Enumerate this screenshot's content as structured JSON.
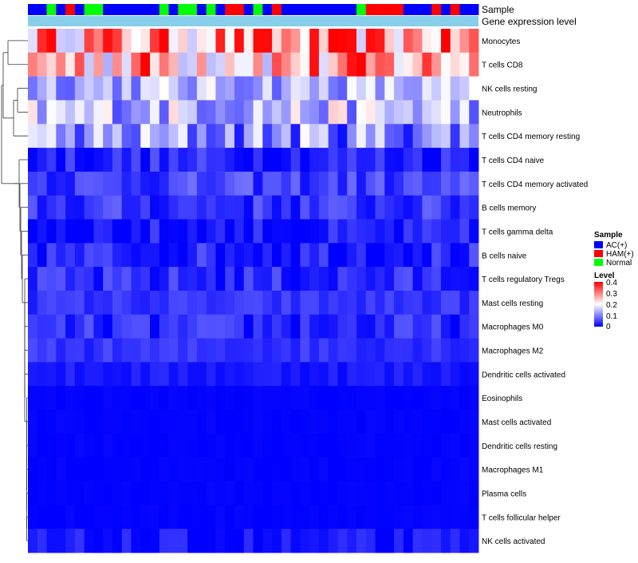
{
  "chart_data": {
    "type": "heatmap",
    "title": "",
    "annotation_tracks": [
      "Sample",
      "Gene expression level"
    ],
    "sample_groups": [
      "A",
      "A",
      "N",
      "A",
      "H",
      "A",
      "N",
      "N",
      "A",
      "A",
      "A",
      "A",
      "A",
      "A",
      "N",
      "A",
      "N",
      "N",
      "A",
      "N",
      "A",
      "H",
      "H",
      "A",
      "N",
      "A",
      "H",
      "A",
      "A",
      "A",
      "A",
      "A",
      "A",
      "A",
      "A",
      "N",
      "H",
      "H",
      "H",
      "H",
      "A",
      "A",
      "A",
      "H",
      "A",
      "H",
      "A",
      "A"
    ],
    "rows": [
      "Monocytes",
      "T cells CD8",
      "NK cells resting",
      "Neutrophils",
      "T cells CD4 memory resting",
      "T cells CD4 naive",
      "T cells CD4 memory activated",
      "B cells memory",
      "T cells gamma delta",
      "B cells naive",
      "T cells regulatory  Tregs",
      "Mast cells resting",
      "Macrophages M0",
      "Macrophages M2",
      "Dendritic cells activated",
      "Eosinophils",
      "Mast cells activated",
      "Dendritic cells resting",
      "Macrophages M1",
      "Plasma cells",
      "T cells follicular helper",
      "NK cells activated"
    ],
    "column_count": 48,
    "row_profile": [
      {
        "mean": 0.28,
        "spread": 0.13
      },
      {
        "mean": 0.27,
        "spread": 0.15
      },
      {
        "mean": 0.14,
        "spread": 0.07
      },
      {
        "mean": 0.15,
        "spread": 0.09
      },
      {
        "mean": 0.11,
        "spread": 0.1
      },
      {
        "mean": 0.03,
        "spread": 0.04
      },
      {
        "mean": 0.05,
        "spread": 0.04
      },
      {
        "mean": 0.04,
        "spread": 0.04
      },
      {
        "mean": 0.015,
        "spread": 0.04
      },
      {
        "mean": 0.03,
        "spread": 0.04
      },
      {
        "mean": 0.03,
        "spread": 0.04
      },
      {
        "mean": 0.04,
        "spread": 0.02
      },
      {
        "mean": 0.03,
        "spread": 0.04
      },
      {
        "mean": 0.04,
        "spread": 0.02
      },
      {
        "mean": 0.02,
        "spread": 0.015
      },
      {
        "mean": 0.002,
        "spread": 0.004
      },
      {
        "mean": 0.002,
        "spread": 0.004
      },
      {
        "mean": 0.002,
        "spread": 0.004
      },
      {
        "mean": 0.002,
        "spread": 0.004
      },
      {
        "mean": 0.002,
        "spread": 0.004
      },
      {
        "mean": 0.002,
        "spread": 0.004
      },
      {
        "mean": 0.01,
        "spread": 0.03
      }
    ],
    "value_range": [
      0,
      0.4
    ],
    "legend": {
      "sample": {
        "title": "Sample",
        "items": [
          {
            "label": "AC(+)",
            "color": "#0000ff"
          },
          {
            "label": "HAM(+)",
            "color": "#ff0000"
          },
          {
            "label": "Normal",
            "color": "#00ff00"
          }
        ]
      },
      "level": {
        "title": "Level",
        "ticks": [
          "0.4",
          "0.3",
          "0.2",
          "0.1",
          "0"
        ]
      }
    },
    "gene_expression_color": "#87ceeb",
    "colormap": {
      "low": "#0000ff",
      "mid": "#ffffff",
      "high": "#ff0000"
    },
    "legend_position": "right"
  }
}
